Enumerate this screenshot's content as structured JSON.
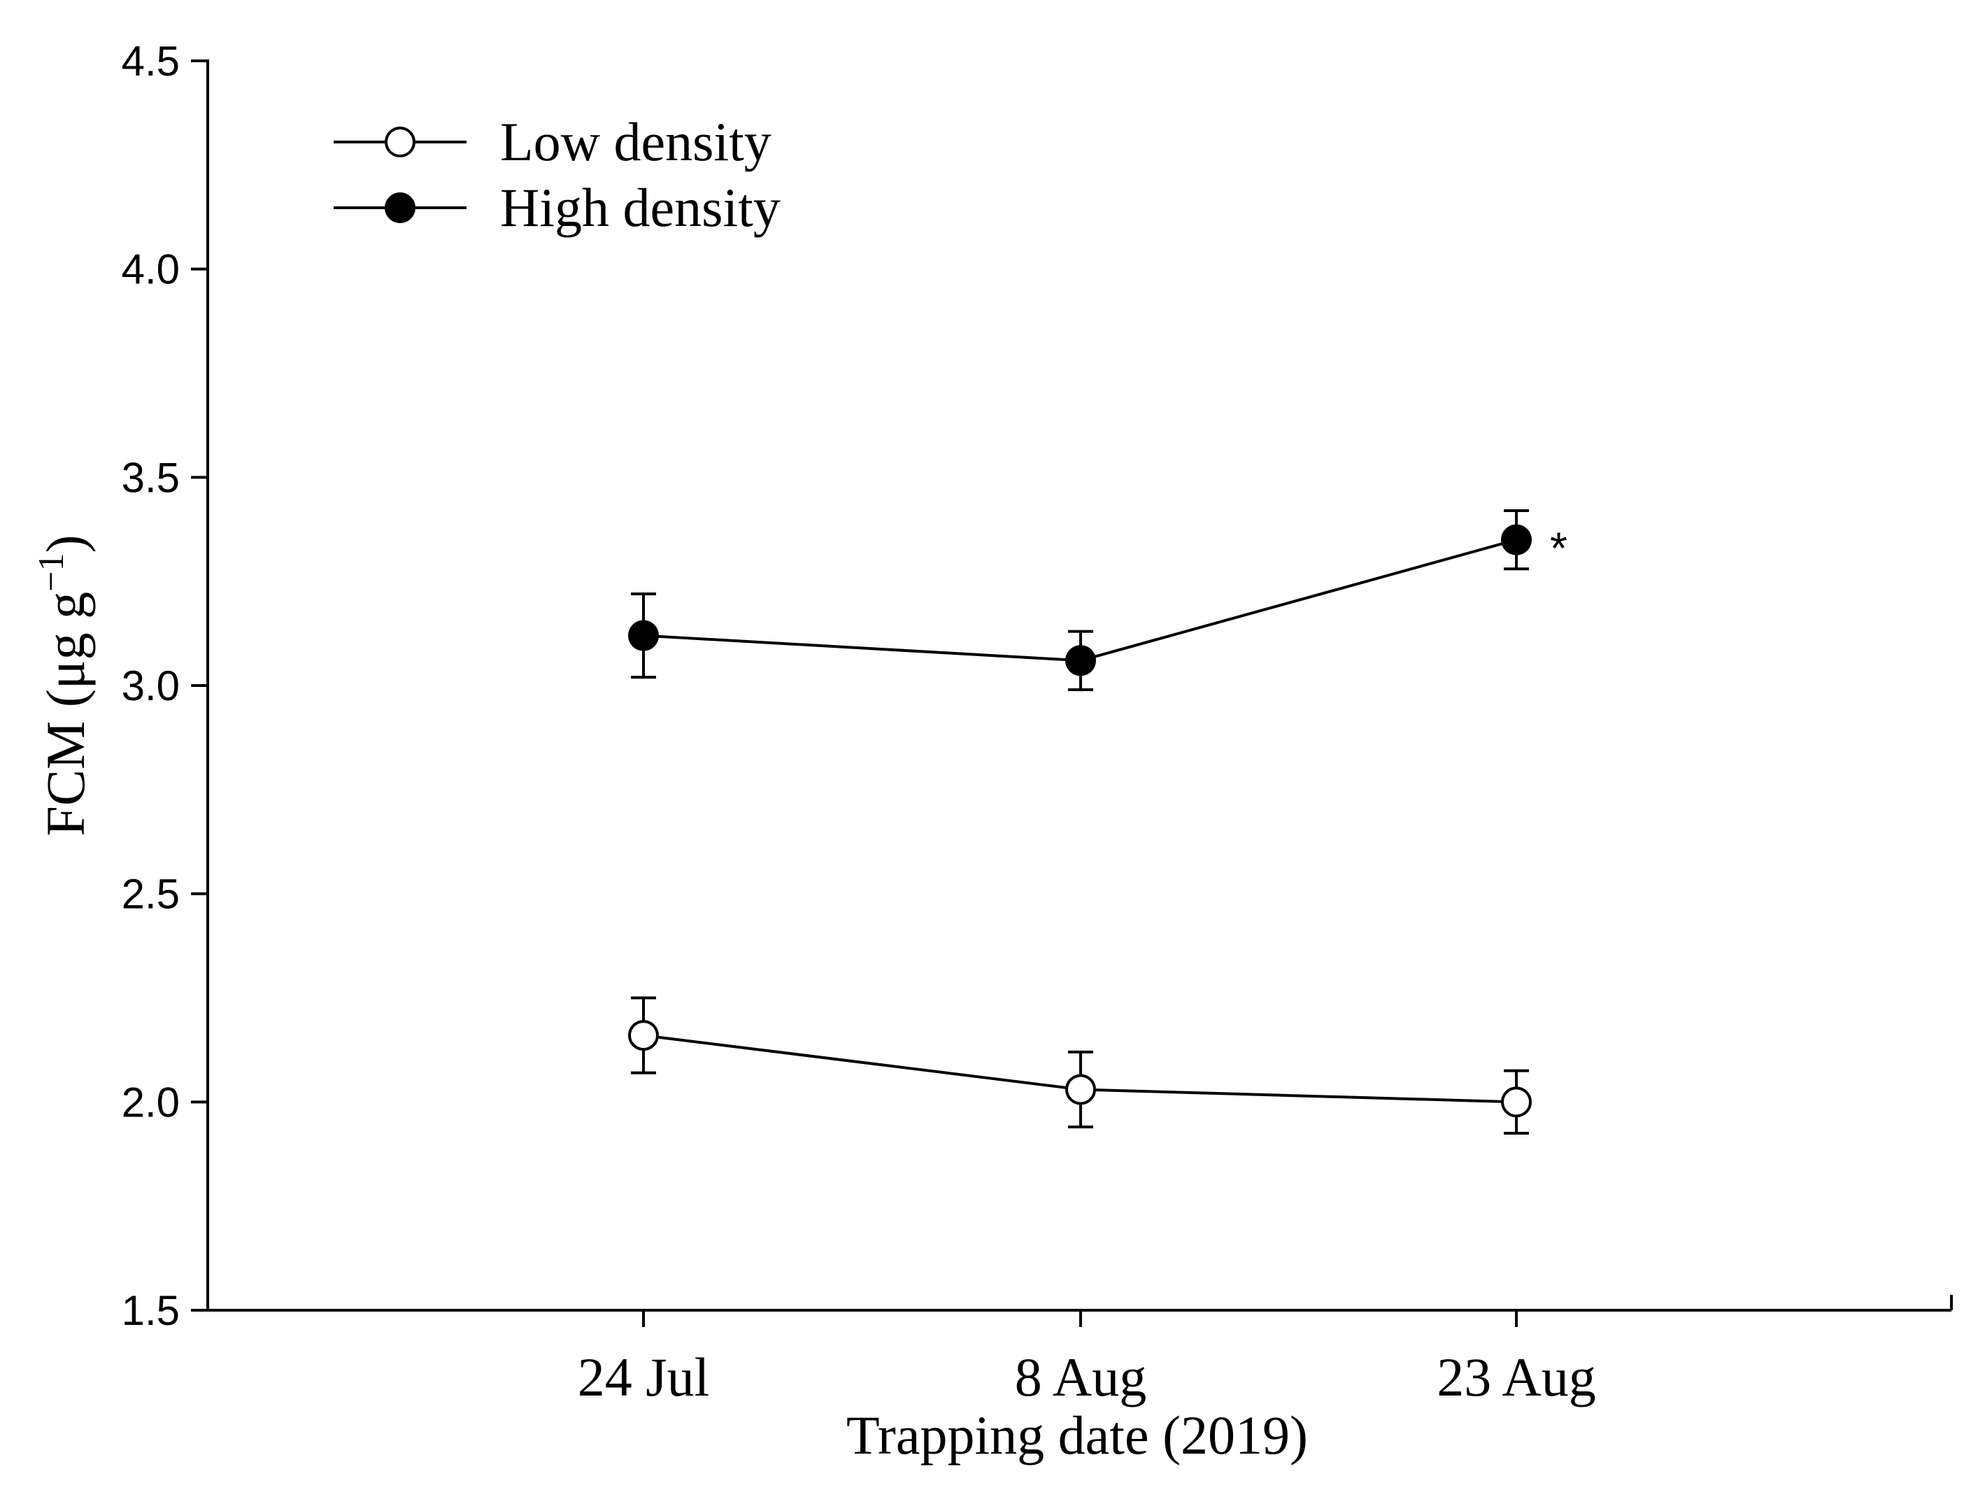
{
  "chart_data": {
    "type": "line",
    "title": "",
    "xlabel": "Trapping date (2019)",
    "ylabel_main": "FCM (μg g",
    "ylabel_sup": "−1",
    "ylabel_close": ")",
    "categories": [
      "24 Jul",
      "8 Aug",
      "23 Aug"
    ],
    "ylim": [
      1.5,
      4.5
    ],
    "yticks": [
      1.5,
      2.0,
      2.5,
      3.0,
      3.5,
      4.0,
      4.5
    ],
    "ytick_labels": [
      "1.5",
      "2.0",
      "2.5",
      "3.0",
      "3.5",
      "4.0",
      "4.5"
    ],
    "grid": false,
    "legend_position": "top-left",
    "series": [
      {
        "name": "Low density",
        "marker": "open-circle",
        "values": [
          2.16,
          2.03,
          2.0
        ],
        "errors": [
          0.09,
          0.09,
          0.075
        ]
      },
      {
        "name": "High density",
        "marker": "filled-circle",
        "values": [
          3.12,
          3.06,
          3.35
        ],
        "errors": [
          0.1,
          0.07,
          0.07
        ]
      }
    ],
    "annotations": [
      {
        "text": "*",
        "series": "High density",
        "category": "23 Aug"
      }
    ]
  }
}
